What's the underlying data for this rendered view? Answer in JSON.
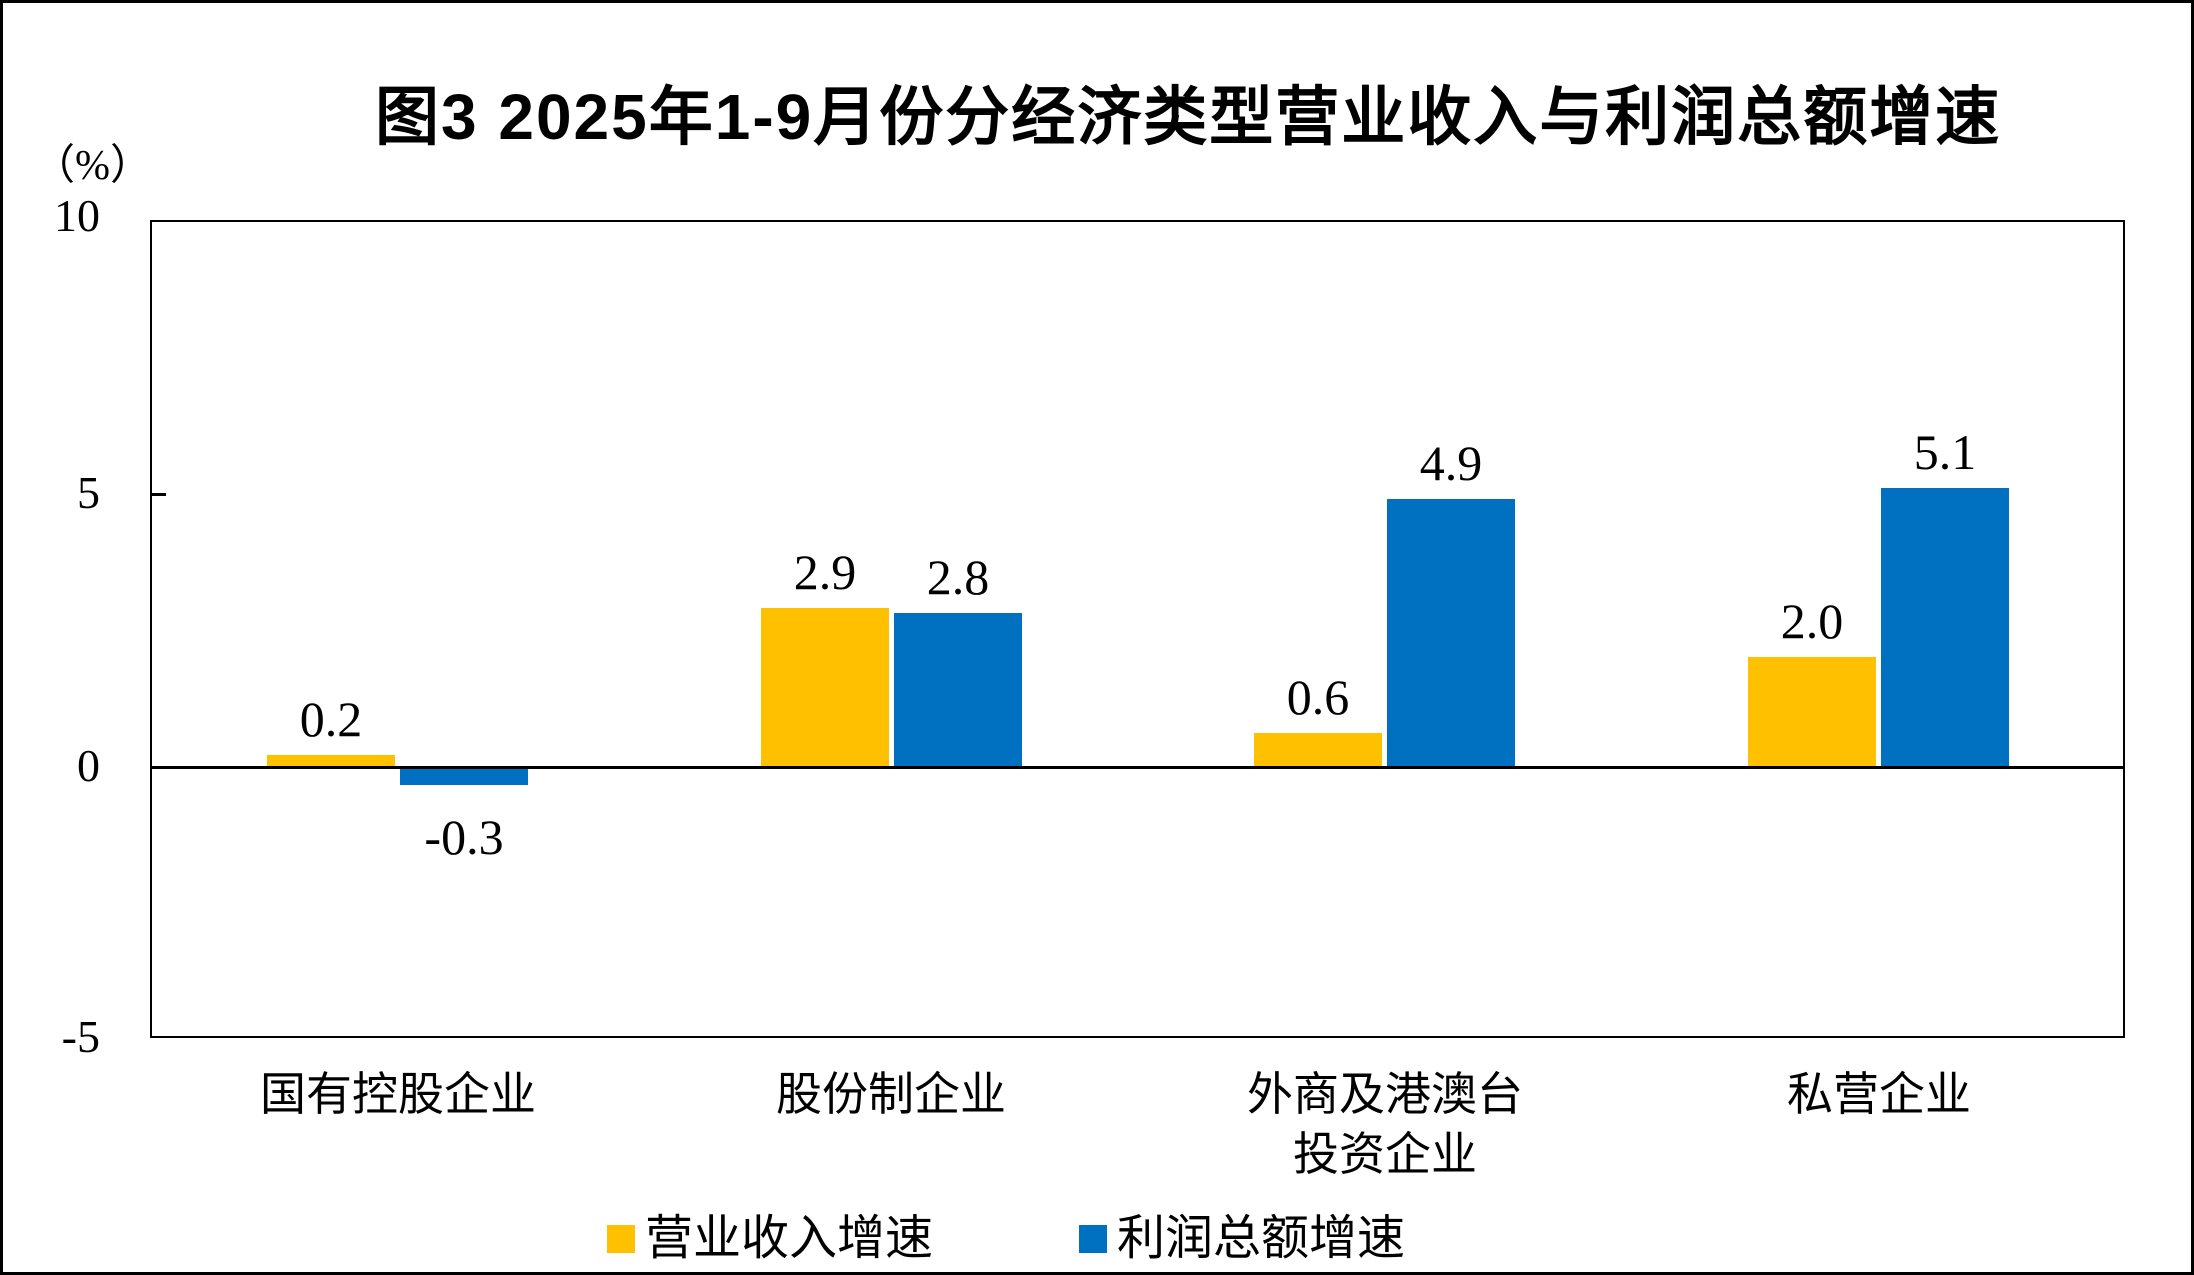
{
  "figure": {
    "title": "图3 2025年1-9月份分经济类型营业收入与利润总额增速",
    "unit_label": "（%）"
  },
  "axis": {
    "y_ticks": [
      "10",
      "5",
      "0",
      "-5"
    ]
  },
  "categories": [
    {
      "line1": "国有控股企业",
      "line2": ""
    },
    {
      "line1": "股份制企业",
      "line2": ""
    },
    {
      "line1": "外商及港澳台",
      "line2": "投资企业"
    },
    {
      "line1": "私营企业",
      "line2": ""
    }
  ],
  "legend": [
    {
      "label": "营业收入增速",
      "color": "#FFC000"
    },
    {
      "label": "利润总额增速",
      "color": "#0070C0"
    }
  ],
  "chart_data": {
    "type": "bar",
    "title": "图3 2025年1-9月份分经济类型营业收入与利润总额增速",
    "ylabel": "（%）",
    "ylim": [
      -5,
      10
    ],
    "y_tick_values": [
      10,
      5,
      0,
      -5
    ],
    "grid": false,
    "legend_position": "bottom",
    "categories": [
      "国有控股企业",
      "股份制企业",
      "外商及港澳台投资企业",
      "私营企业"
    ],
    "series": [
      {
        "name": "营业收入增速",
        "color": "#FFC000",
        "values": [
          0.2,
          2.9,
          0.6,
          2.0
        ]
      },
      {
        "name": "利润总额增速",
        "color": "#0070C0",
        "values": [
          -0.3,
          2.8,
          4.9,
          5.1
        ]
      }
    ],
    "data_labels": [
      [
        "0.2",
        "2.9",
        "0.6",
        "2.0"
      ],
      [
        "-0.3",
        "2.8",
        "4.9",
        "5.1"
      ]
    ]
  }
}
